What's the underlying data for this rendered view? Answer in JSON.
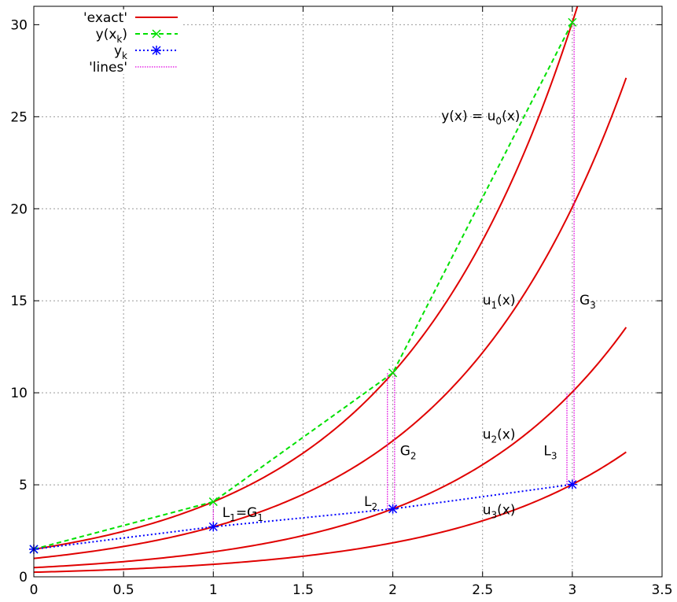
{
  "chart_data": {
    "type": "line",
    "title": "",
    "xlabel": "",
    "ylabel": "",
    "xlim": [
      0,
      3.5
    ],
    "ylim": [
      0,
      31
    ],
    "grid": true,
    "legend_position": "top-left",
    "x_ticks": [
      "0",
      "0.5",
      "1",
      "1.5",
      "2",
      "2.5",
      "3",
      "3.5"
    ],
    "y_ticks": [
      "0",
      "5",
      "10",
      "15",
      "20",
      "25",
      "30"
    ],
    "colors": {
      "exact": "#e00000",
      "y_xk": "#00e000",
      "yk": "#0000ff",
      "lines": "#e000e0",
      "grid": "#999999"
    },
    "legend": [
      {
        "key": "exact",
        "base": "'exact'",
        "sub": "",
        "rest": ""
      },
      {
        "key": "y_xk",
        "base": "y(x",
        "sub": "k",
        "rest": ")"
      },
      {
        "key": "yk",
        "base": "y",
        "sub": "k",
        "rest": ""
      },
      {
        "key": "lines",
        "base": "'lines'",
        "sub": "",
        "rest": ""
      }
    ],
    "exact_curves": [
      {
        "label_pre": "y(x) = u",
        "label_sub": "0",
        "label_post": "(x)",
        "coef": 1.5,
        "x": [
          0,
          3.05
        ]
      },
      {
        "label_pre": "u",
        "label_sub": "1",
        "label_post": "(x)",
        "coef": 1.0,
        "x": [
          0,
          3.3
        ]
      },
      {
        "label_pre": "u",
        "label_sub": "2",
        "label_post": "(x)",
        "coef": 0.5,
        "x": [
          0,
          3.3
        ]
      },
      {
        "label_pre": "u",
        "label_sub": "3",
        "label_post": "(x)",
        "coef": 0.25,
        "x": [
          0,
          3.3
        ]
      }
    ],
    "series": [
      {
        "key": "y_xk",
        "style": "dashed",
        "marker": "x",
        "x": [
          0,
          1,
          2,
          3
        ],
        "y": [
          1.5,
          4.08,
          11.08,
          30.13
        ]
      },
      {
        "key": "yk",
        "style": "dotted",
        "marker": "star",
        "x": [
          0,
          1,
          2,
          3
        ],
        "y": [
          1.5,
          2.72,
          3.69,
          5.02
        ]
      }
    ],
    "lines": [
      {
        "x": 1,
        "y0": 2.72,
        "y1": 4.08
      },
      {
        "x": 1.97,
        "y0": 3.69,
        "y1": 11.08
      },
      {
        "x": 2.01,
        "y0": 3.69,
        "y1": 11.08
      },
      {
        "x": 2.97,
        "y0": 5.02,
        "y1": 10.04
      },
      {
        "x": 3.01,
        "y0": 5.02,
        "y1": 30.13
      }
    ],
    "annotations": [
      {
        "pre": "L",
        "sub": "1",
        "mid": "=G",
        "sub2": "1",
        "x": 1.05,
        "y": 3.25
      },
      {
        "pre": "L",
        "sub": "2",
        "mid": "",
        "sub2": "",
        "x": 1.84,
        "y": 3.85
      },
      {
        "pre": "G",
        "sub": "2",
        "mid": "",
        "sub2": "",
        "x": 2.04,
        "y": 6.6
      },
      {
        "pre": "L",
        "sub": "3",
        "mid": "",
        "sub2": "",
        "x": 2.84,
        "y": 6.6
      },
      {
        "pre": "G",
        "sub": "3",
        "mid": "",
        "sub2": "",
        "x": 3.04,
        "y": 14.8
      }
    ],
    "curve_label_positions": [
      {
        "x": 2.27,
        "y": 24.8
      },
      {
        "x": 2.5,
        "y": 14.8
      },
      {
        "x": 2.5,
        "y": 7.5
      },
      {
        "x": 2.5,
        "y": 3.4
      }
    ]
  }
}
